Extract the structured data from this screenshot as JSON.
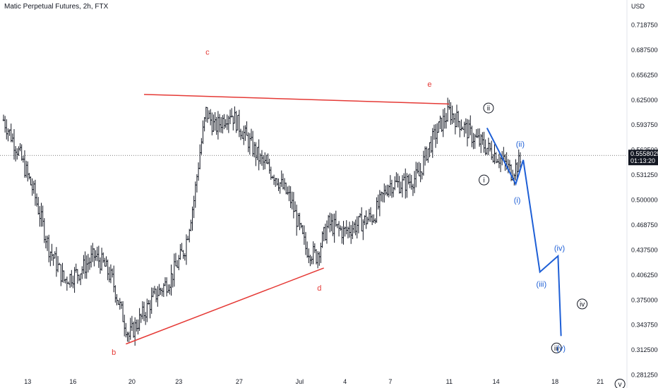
{
  "header": {
    "title": "Matic Perpetual Futures, 2h, FTX",
    "currency": "USD"
  },
  "colors": {
    "bars": "#131722",
    "trendlines": "#e53935",
    "projection": "#1e5fd6",
    "price_tag_bg": "#131722"
  },
  "price_tag": {
    "price": "0.5558025",
    "countdown": "01:13:20"
  },
  "chart_data": {
    "type": "ohlc",
    "xlabel": "",
    "ylabel": "",
    "ylim": [
      0.265,
      0.75
    ],
    "y_ticks": [
      "0.7187500",
      "0.6875000",
      "0.6562500",
      "0.6250000",
      "0.5937500",
      "0.5625000",
      "0.5312500",
      "0.5000000",
      "0.4687500",
      "0.4375000",
      "0.4062500",
      "0.3750000",
      "0.3437500",
      "0.3125000",
      "0.2812500"
    ],
    "x_ticks": [
      "13",
      "16",
      "20",
      "23",
      "27",
      "Jul",
      "4",
      "7",
      "11",
      "14",
      "18",
      "21"
    ],
    "current_price": 0.5558025,
    "price_path": [
      [
        0.0,
        0.6
      ],
      [
        1.0,
        0.56
      ],
      [
        2.0,
        0.51
      ],
      [
        3.0,
        0.44
      ],
      [
        4.0,
        0.4
      ],
      [
        5.0,
        0.41
      ],
      [
        6.0,
        0.43
      ],
      [
        6.6,
        0.42
      ],
      [
        7.2,
        0.4
      ],
      [
        7.8,
        0.36
      ],
      [
        8.3,
        0.33
      ],
      [
        9.0,
        0.35
      ],
      [
        10.0,
        0.38
      ],
      [
        11.0,
        0.4
      ],
      [
        12.0,
        0.44
      ],
      [
        12.6,
        0.5
      ],
      [
        13.0,
        0.56
      ],
      [
        13.4,
        0.61
      ],
      [
        14.0,
        0.59
      ],
      [
        15.0,
        0.61
      ],
      [
        16.0,
        0.58
      ],
      [
        17.0,
        0.55
      ],
      [
        18.0,
        0.53
      ],
      [
        19.0,
        0.5
      ],
      [
        20.0,
        0.44
      ],
      [
        20.7,
        0.43
      ],
      [
        21.5,
        0.47
      ],
      [
        22.5,
        0.46
      ],
      [
        23.5,
        0.47
      ],
      [
        24.5,
        0.48
      ],
      [
        25.5,
        0.52
      ],
      [
        26.5,
        0.52
      ],
      [
        27.5,
        0.53
      ],
      [
        28.0,
        0.56
      ],
      [
        28.8,
        0.59
      ],
      [
        29.5,
        0.61
      ],
      [
        30.3,
        0.595
      ],
      [
        31.0,
        0.58
      ],
      [
        32.0,
        0.565
      ],
      [
        33.0,
        0.55
      ],
      [
        33.6,
        0.535
      ],
      [
        34.3,
        0.55
      ]
    ],
    "series": [
      {
        "type": "trendline",
        "points": [
          [
            9.3,
            0.632
          ],
          [
            29.5,
            0.62
          ]
        ]
      },
      {
        "type": "trendline",
        "points": [
          [
            8.1,
            0.32
          ],
          [
            21.2,
            0.415
          ]
        ]
      },
      {
        "type": "projection",
        "points": [
          [
            32.0,
            0.59
          ],
          [
            33.9,
            0.52
          ],
          [
            34.4,
            0.55
          ],
          [
            35.5,
            0.41
          ],
          [
            36.7,
            0.43
          ],
          [
            36.9,
            0.33
          ]
        ]
      }
    ],
    "annotations": [
      {
        "label": "c",
        "style": "red",
        "x": 13.5,
        "y": 0.685
      },
      {
        "label": "e",
        "style": "red",
        "x": 28.2,
        "y": 0.645
      },
      {
        "label": "d",
        "style": "red",
        "x": 20.9,
        "y": 0.39
      },
      {
        "label": "b",
        "style": "red",
        "x": 7.3,
        "y": 0.31
      },
      {
        "label": "ii",
        "style": "circle",
        "x": 32.1,
        "y": 0.615
      },
      {
        "label": "i",
        "style": "circle",
        "x": 31.8,
        "y": 0.525
      },
      {
        "label": "(ii)",
        "style": "blue",
        "x": 34.2,
        "y": 0.57
      },
      {
        "label": "(i)",
        "style": "blue",
        "x": 34.0,
        "y": 0.5
      },
      {
        "label": "(iv)",
        "style": "blue",
        "x": 36.8,
        "y": 0.44
      },
      {
        "label": "(iii)",
        "style": "blue",
        "x": 35.6,
        "y": 0.395
      },
      {
        "label": "iii",
        "style": "circle",
        "x": 36.6,
        "y": 0.315
      },
      {
        "label": "(v)",
        "style": "blue",
        "x": 36.9,
        "y": 0.315
      },
      {
        "label": "iv",
        "style": "circle",
        "x": 38.3,
        "y": 0.37
      },
      {
        "label": "v",
        "style": "circle",
        "x": 40.8,
        "y": 0.27
      }
    ]
  }
}
